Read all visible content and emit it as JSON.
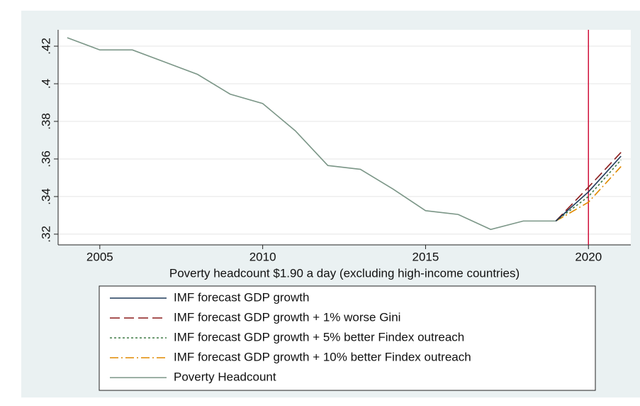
{
  "chart_data": {
    "type": "line",
    "x_label": "Poverty headcount $1.90 a day (excluding high-income countries)",
    "x": [
      2004,
      2005,
      2006,
      2007,
      2008,
      2009,
      2010,
      2011,
      2012,
      2013,
      2014,
      2015,
      2016,
      2017,
      2018,
      2019,
      2020,
      2021
    ],
    "series": [
      {
        "name": "IMF forecast GDP growth",
        "color": "#1f3a5a",
        "style": "solid",
        "values": [
          null,
          null,
          null,
          null,
          null,
          null,
          null,
          null,
          null,
          null,
          null,
          null,
          null,
          null,
          null,
          0.327,
          0.3425,
          0.3615
        ]
      },
      {
        "name": "IMF forecast GDP growth + 1% worse Gini",
        "color": "#8b1c1c",
        "style": "dashed",
        "values": [
          null,
          null,
          null,
          null,
          null,
          null,
          null,
          null,
          null,
          null,
          null,
          null,
          null,
          null,
          null,
          0.327,
          0.345,
          0.3635
        ]
      },
      {
        "name": "IMF forecast GDP growth + 5% better Findex outreach",
        "color": "#3f7a45",
        "style": "dotted",
        "values": [
          null,
          null,
          null,
          null,
          null,
          null,
          null,
          null,
          null,
          null,
          null,
          null,
          null,
          null,
          null,
          0.327,
          0.34,
          0.3595
        ]
      },
      {
        "name": "IMF forecast GDP growth + 10% better Findex outreach",
        "color": "#e08a00",
        "style": "dashdot",
        "values": [
          null,
          null,
          null,
          null,
          null,
          null,
          null,
          null,
          null,
          null,
          null,
          null,
          null,
          null,
          null,
          0.327,
          0.337,
          0.356
        ]
      },
      {
        "name": "Poverty Headcount",
        "color": "#7b9687",
        "style": "solid",
        "values": [
          0.4245,
          0.418,
          0.418,
          0.4115,
          0.405,
          0.3945,
          0.3895,
          0.375,
          0.3565,
          0.3545,
          0.344,
          0.3325,
          0.3305,
          0.3225,
          0.327,
          0.327,
          null,
          null
        ]
      }
    ],
    "xlim": [
      2003.72,
      2021.3
    ],
    "xticks": [
      2005,
      2010,
      2015,
      2020
    ],
    "ylim": [
      0.3143,
      0.4287
    ],
    "yticks": [
      {
        "value": 0.32,
        "label": ".32"
      },
      {
        "value": 0.34,
        "label": ".34"
      },
      {
        "value": 0.36,
        "label": ".36"
      },
      {
        "value": 0.38,
        "label": ".38"
      },
      {
        "value": 0.4,
        "label": ".4"
      },
      {
        "value": 0.42,
        "label": ".42"
      }
    ],
    "xline": 2020,
    "xline_color": "#d0103a",
    "grid": true
  }
}
